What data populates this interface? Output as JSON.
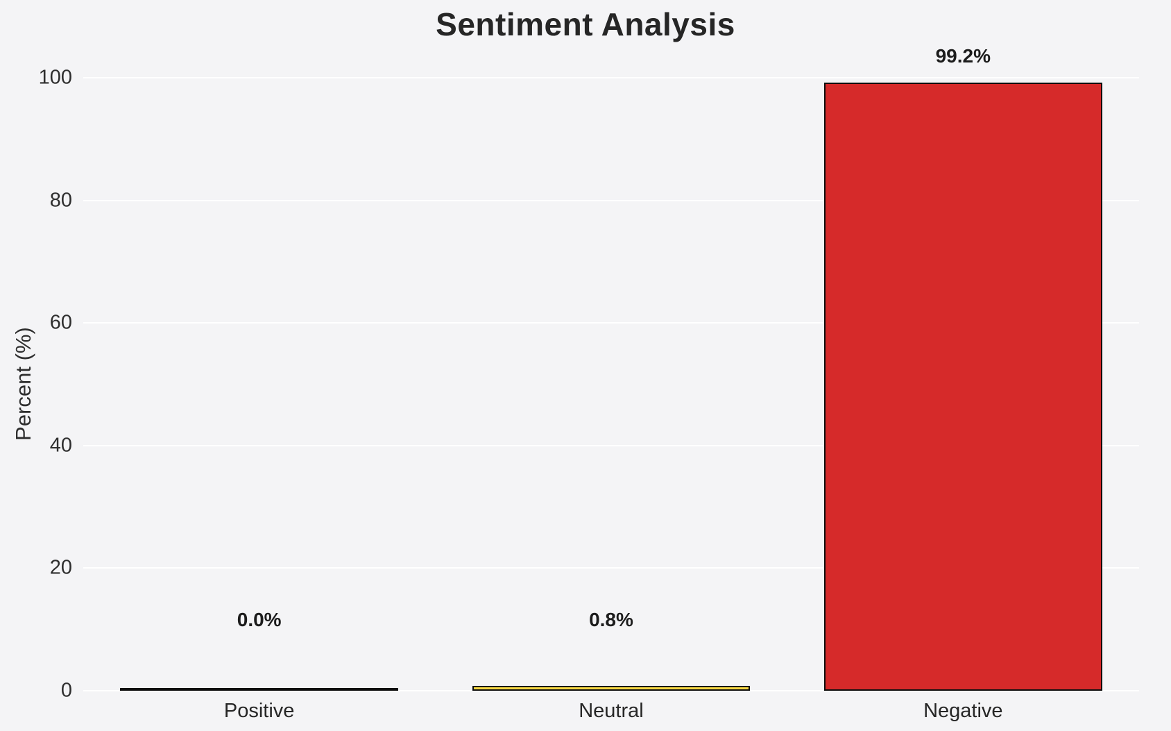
{
  "chart_data": {
    "type": "bar",
    "title": "Sentiment Analysis",
    "xlabel": "",
    "ylabel": "Percent (%)",
    "categories": [
      "Positive",
      "Neutral",
      "Negative"
    ],
    "values": [
      0.0,
      0.8,
      99.2
    ],
    "value_labels": [
      "0.0%",
      "0.8%",
      "99.2%"
    ],
    "ylim": [
      0,
      100
    ],
    "yticks": [
      0,
      20,
      40,
      60,
      80,
      100
    ],
    "grid": true,
    "legend": "none",
    "bar_colors": [
      "#2ca02c",
      "#f7d843",
      "#d62a2a"
    ],
    "bar_edge_color": "#0d0d0d",
    "background_color": "#f4f4f6",
    "gridline_color": "#ffffff"
  }
}
